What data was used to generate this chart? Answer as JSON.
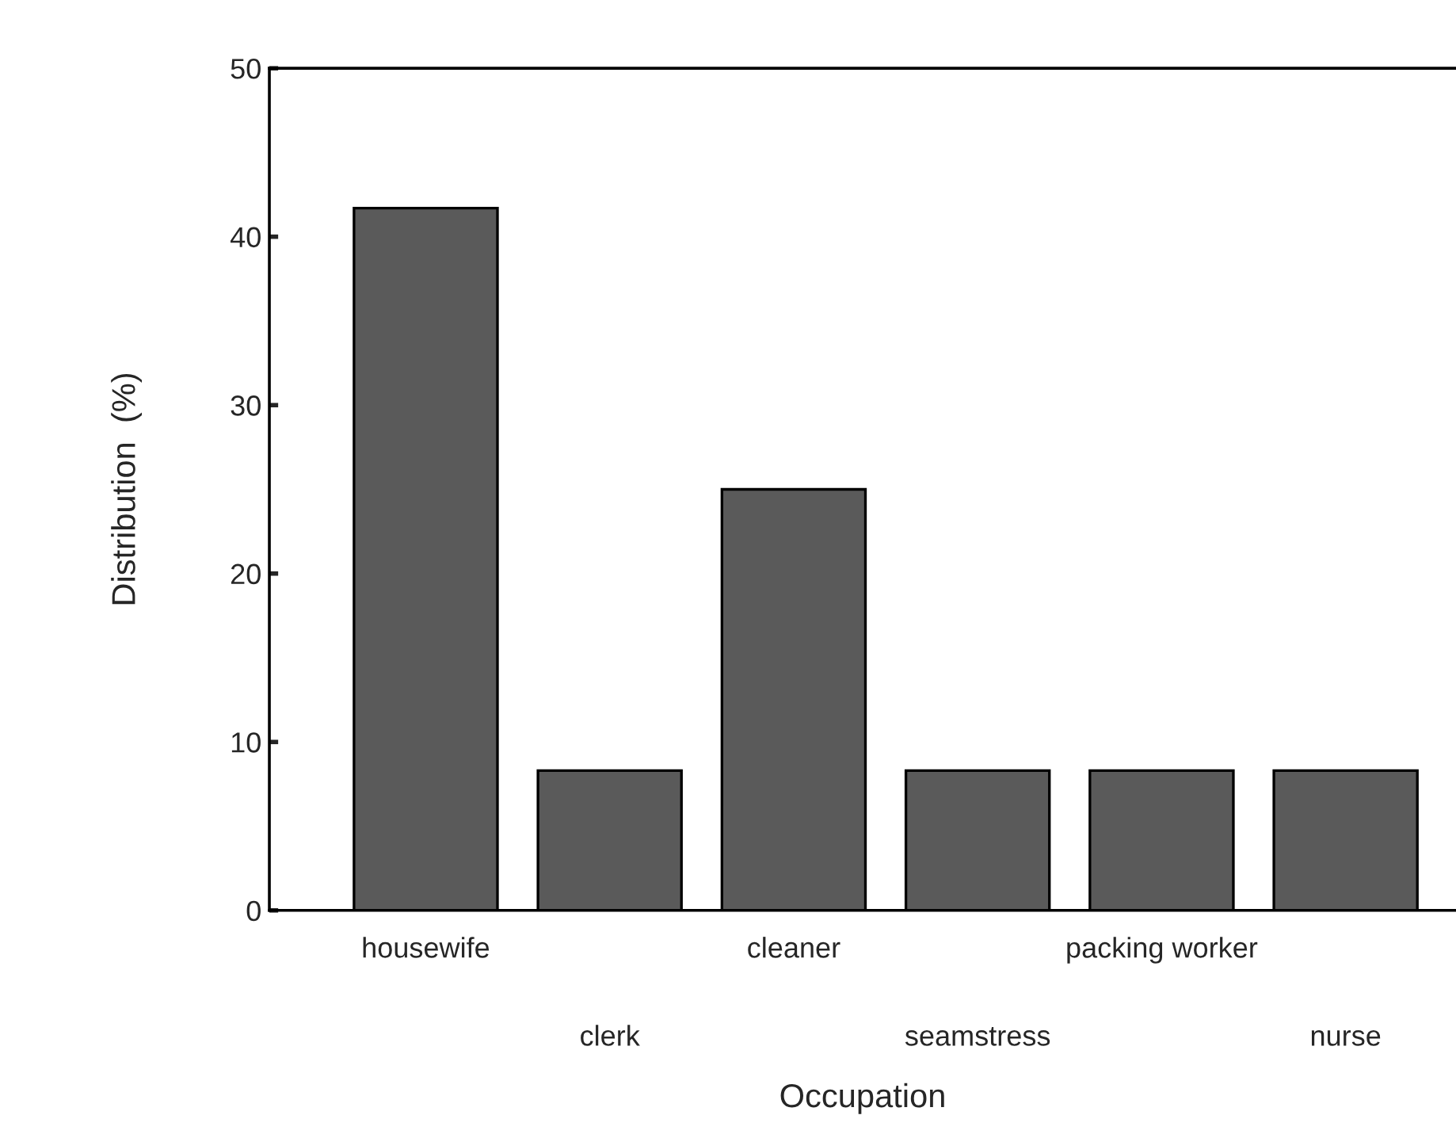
{
  "chart_data": {
    "type": "bar",
    "xlabel": "Occupation",
    "ylabel": "Distribution  (%)",
    "categories": [
      "housewife",
      "clerk",
      "cleaner",
      "seamstress",
      "packing worker",
      "nurse"
    ],
    "values": [
      41.7,
      8.3,
      25.0,
      8.3,
      8.3,
      8.3
    ],
    "color": "#5a5a5a",
    "ylim": [
      0,
      50
    ],
    "yticks": [
      0,
      10,
      20,
      30,
      40,
      50
    ],
    "grid": false
  }
}
